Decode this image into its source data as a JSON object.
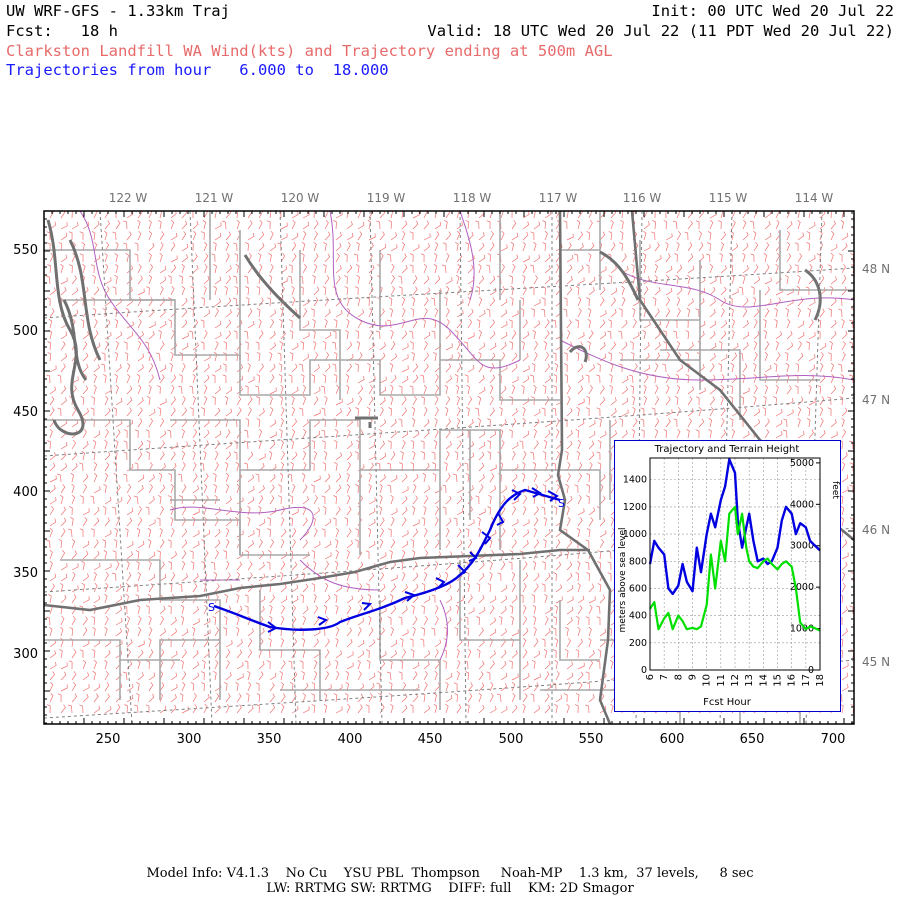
{
  "header": {
    "title": "UW WRF-GFS - 1.33km Traj",
    "init": "Init: 00 UTC Wed 20 Jul 22",
    "fcst": "Fcst:   18 h",
    "valid": "Valid: 18 UTC Wed 20 Jul 22 (11 PDT Wed 20 Jul 22)",
    "subtitle": "Clarkston Landfill WA Wind(kts) and Trajectory ending at 500m AGL",
    "traj_hours": "Trajectories from hour   6.000 to  18.000"
  },
  "map": {
    "lon_labels": [
      "122 W",
      "121 W",
      "120 W",
      "119 W",
      "118 W",
      "117 W",
      "116 W",
      "115 W",
      "114 W"
    ],
    "lat_labels": [
      "48 N",
      "47 N",
      "46 N",
      "45 N"
    ],
    "x_ticks": [
      "250",
      "300",
      "350",
      "400",
      "450",
      "500",
      "550",
      "600",
      "650",
      "700"
    ],
    "y_ticks": [
      "550",
      "500",
      "450",
      "400",
      "350",
      "300"
    ],
    "start_marker": "S",
    "end_marker": "S",
    "colors": {
      "wind_barbs": "#f07070",
      "trajectory": "#0000e0",
      "counties": "#a8a8a8",
      "states": "#707070",
      "rivers": "#b060c0"
    }
  },
  "inset": {
    "title": "Trajectory and Terrain Height",
    "ylabel": "meters above sea level",
    "ylabel_right": "feet",
    "xlabel": "Fcst Hour",
    "y_ticks": [
      "0",
      "200",
      "400",
      "600",
      "800",
      "1000",
      "1200",
      "1400"
    ],
    "y_ticks_right": [
      "0",
      "1000",
      "2000",
      "3000",
      "4000",
      "5000"
    ],
    "x_ticks": [
      "6",
      "7",
      "8",
      "9",
      "10",
      "11",
      "12",
      "13",
      "14",
      "15",
      "16",
      "17",
      "18"
    ]
  },
  "chart_data": {
    "type": "line",
    "title": "Trajectory and Terrain Height",
    "xlabel": "Fcst Hour",
    "ylabel": "meters above sea level",
    "xlim": [
      6,
      18
    ],
    "ylim": [
      0,
      1560
    ],
    "series": [
      {
        "name": "",
        "color": "#0000e0",
        "x": [
          6.0,
          6.3,
          6.6,
          7.0,
          7.3,
          7.6,
          8.0,
          8.3,
          8.6,
          9.0,
          9.3,
          9.6,
          10.0,
          10.3,
          10.6,
          11.0,
          11.3,
          11.6,
          12.0,
          12.2,
          12.5,
          12.8,
          13.0,
          13.3,
          13.6,
          14.0,
          14.3,
          14.6,
          15.0,
          15.3,
          15.6,
          16.0,
          16.3,
          16.6,
          17.0,
          17.3,
          17.6,
          18.0
        ],
        "y": [
          780,
          950,
          900,
          850,
          600,
          560,
          620,
          780,
          650,
          580,
          900,
          720,
          1000,
          1150,
          1050,
          1250,
          1350,
          1550,
          1450,
          1100,
          900,
          1050,
          1150,
          950,
          800,
          820,
          780,
          800,
          900,
          1100,
          1200,
          1150,
          1000,
          1080,
          1050,
          950,
          920,
          880
        ]
      },
      {
        "name": "",
        "color": "#00e000",
        "x": [
          6.0,
          6.3,
          6.6,
          7.0,
          7.3,
          7.6,
          8.0,
          8.3,
          8.6,
          9.0,
          9.3,
          9.6,
          10.0,
          10.3,
          10.6,
          11.0,
          11.3,
          11.6,
          12.0,
          12.2,
          12.5,
          12.8,
          13.0,
          13.3,
          13.6,
          14.0,
          14.3,
          14.6,
          15.0,
          15.3,
          15.6,
          16.0,
          16.3,
          16.6,
          17.0,
          17.3,
          17.6,
          18.0
        ],
        "y": [
          450,
          500,
          300,
          380,
          420,
          300,
          400,
          360,
          300,
          310,
          300,
          320,
          480,
          850,
          600,
          950,
          800,
          1150,
          1200,
          1000,
          1150,
          900,
          800,
          760,
          750,
          800,
          820,
          780,
          740,
          780,
          800,
          760,
          600,
          350,
          300,
          320,
          310,
          290
        ]
      }
    ]
  },
  "footer": {
    "line1": "Model Info: V4.1.3    No Cu    YSU PBL  Thompson     Noah-MP    1.3 km,  37 levels,     8 sec",
    "line2": "LW: RRTMG SW: RRTMG    DIFF: full    KM: 2D Smagor"
  }
}
